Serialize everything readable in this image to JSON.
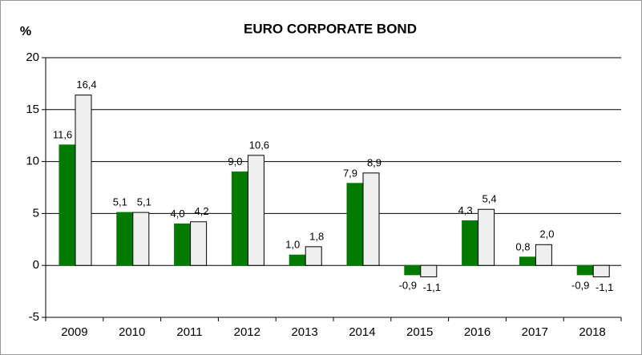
{
  "chart_data": {
    "type": "bar",
    "title": "EURO CORPORATE BOND",
    "y_label": "%",
    "categories": [
      "2009",
      "2010",
      "2011",
      "2012",
      "2013",
      "2014",
      "2015",
      "2016",
      "2017",
      "2018"
    ],
    "series": [
      {
        "color": "#007a00",
        "values": [
          11.6,
          5.1,
          4.0,
          9.0,
          1.0,
          7.9,
          -0.9,
          4.3,
          0.8,
          -0.9
        ],
        "value_labels": [
          "11,6",
          "5,1",
          "4,0",
          "9,0",
          "1,0",
          "7,9",
          "-0,9",
          "4,3",
          "0,8",
          "-0,9"
        ]
      },
      {
        "color": "#efefef",
        "values": [
          16.4,
          5.1,
          4.2,
          10.6,
          1.8,
          8.9,
          -1.1,
          5.4,
          2.0,
          -1.1
        ],
        "value_labels": [
          "16,4",
          "5,1",
          "4,2",
          "10,6",
          "1,8",
          "8,9",
          "-1,1",
          "5,4",
          "2,0",
          "-1,1"
        ]
      }
    ],
    "ylim": [
      -5,
      20
    ],
    "yticks": [
      -5,
      0,
      5,
      10,
      15,
      20
    ],
    "grid": true
  }
}
